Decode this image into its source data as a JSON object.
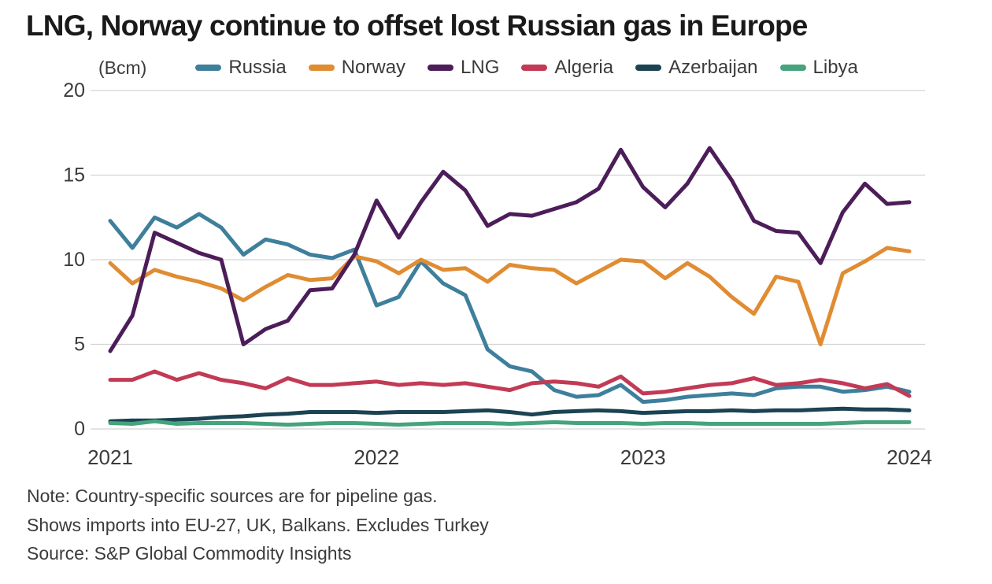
{
  "title": "LNG, Norway continue to offset lost Russian gas in Europe",
  "unit_label": "(Bcm)",
  "notes": {
    "line1": "Note: Country-specific sources are for pipeline gas.",
    "line2": "Shows imports into EU-27, UK, Balkans. Excludes Turkey",
    "source": "Source: S&P Global Commodity Insights"
  },
  "colors": {
    "title_text": "#1a1a1a",
    "body_text": "#3b3b3b",
    "gridline": "#d4d4d4",
    "background": "#ffffff"
  },
  "chart_data": {
    "type": "line",
    "title": "LNG, Norway continue to offset lost Russian gas in Europe",
    "ylabel": "(Bcm)",
    "xlabel": "",
    "ylim": [
      0,
      20
    ],
    "yticks": [
      0,
      5,
      10,
      15,
      20
    ],
    "xticks": [
      "2021",
      "2022",
      "2023",
      "2024"
    ],
    "grid": true,
    "legend_position": "top",
    "x": [
      "2021-01",
      "2021-02",
      "2021-03",
      "2021-04",
      "2021-05",
      "2021-06",
      "2021-07",
      "2021-08",
      "2021-09",
      "2021-10",
      "2021-11",
      "2021-12",
      "2022-01",
      "2022-02",
      "2022-03",
      "2022-04",
      "2022-05",
      "2022-06",
      "2022-07",
      "2022-08",
      "2022-09",
      "2022-10",
      "2022-11",
      "2022-12",
      "2023-01",
      "2023-02",
      "2023-03",
      "2023-04",
      "2023-05",
      "2023-06",
      "2023-07",
      "2023-08",
      "2023-09",
      "2023-10",
      "2023-11",
      "2023-12",
      "2024-01"
    ],
    "series": [
      {
        "name": "Russia",
        "key": "russia",
        "color": "#3e7f9c",
        "values": [
          12.3,
          10.7,
          12.5,
          11.9,
          12.7,
          11.9,
          10.3,
          11.2,
          10.9,
          10.3,
          10.1,
          10.6,
          7.3,
          7.8,
          9.9,
          8.6,
          7.9,
          4.7,
          3.7,
          3.4,
          2.3,
          1.9,
          2.0,
          2.6,
          1.6,
          1.7,
          1.9,
          2.0,
          2.1,
          2.0,
          2.4,
          2.5,
          2.5,
          2.2,
          2.3,
          2.5,
          2.2
        ]
      },
      {
        "name": "Norway",
        "key": "norway",
        "color": "#e08c33",
        "values": [
          9.8,
          8.6,
          9.4,
          9.0,
          8.7,
          8.3,
          7.6,
          8.4,
          9.1,
          8.8,
          8.9,
          10.2,
          9.9,
          9.2,
          10.0,
          9.4,
          9.5,
          8.7,
          9.7,
          9.5,
          9.4,
          8.6,
          9.3,
          10.0,
          9.9,
          8.9,
          9.8,
          9.0,
          7.8,
          6.8,
          9.0,
          8.7,
          5.0,
          9.2,
          9.9,
          10.7,
          10.5
        ]
      },
      {
        "name": "LNG",
        "key": "lng",
        "color": "#4c1d59",
        "values": [
          4.6,
          6.7,
          11.6,
          11.0,
          10.4,
          10.0,
          5.0,
          5.9,
          6.4,
          8.2,
          8.3,
          10.3,
          13.5,
          11.3,
          13.4,
          15.2,
          14.1,
          12.0,
          12.7,
          12.6,
          13.0,
          13.4,
          14.2,
          16.5,
          14.3,
          13.1,
          14.5,
          16.6,
          14.7,
          12.3,
          11.7,
          11.6,
          9.8,
          12.8,
          14.5,
          13.3,
          13.4
        ]
      },
      {
        "name": "Algeria",
        "key": "algeria",
        "color": "#c23a55",
        "values": [
          2.9,
          2.9,
          3.4,
          2.9,
          3.3,
          2.9,
          2.7,
          2.4,
          3.0,
          2.6,
          2.6,
          2.7,
          2.8,
          2.6,
          2.7,
          2.6,
          2.7,
          2.5,
          2.3,
          2.7,
          2.8,
          2.7,
          2.5,
          3.1,
          2.1,
          2.2,
          2.4,
          2.6,
          2.7,
          3.0,
          2.6,
          2.7,
          2.9,
          2.7,
          2.4,
          2.65,
          1.95
        ]
      },
      {
        "name": "Azerbaijan",
        "key": "azerbaijan",
        "color": "#1b4353",
        "values": [
          0.45,
          0.5,
          0.5,
          0.55,
          0.6,
          0.7,
          0.75,
          0.85,
          0.9,
          1.0,
          1.0,
          1.0,
          0.95,
          1.0,
          1.0,
          1.0,
          1.05,
          1.1,
          1.0,
          0.85,
          1.0,
          1.05,
          1.1,
          1.05,
          0.95,
          1.0,
          1.05,
          1.05,
          1.1,
          1.05,
          1.1,
          1.1,
          1.15,
          1.2,
          1.15,
          1.15,
          1.1
        ]
      },
      {
        "name": "Libya",
        "key": "libya",
        "color": "#47a37d",
        "values": [
          0.35,
          0.3,
          0.45,
          0.3,
          0.35,
          0.35,
          0.35,
          0.3,
          0.25,
          0.3,
          0.35,
          0.35,
          0.3,
          0.25,
          0.3,
          0.35,
          0.35,
          0.35,
          0.3,
          0.35,
          0.4,
          0.35,
          0.35,
          0.35,
          0.3,
          0.35,
          0.35,
          0.3,
          0.3,
          0.3,
          0.3,
          0.3,
          0.3,
          0.35,
          0.4,
          0.4,
          0.4
        ]
      }
    ]
  }
}
